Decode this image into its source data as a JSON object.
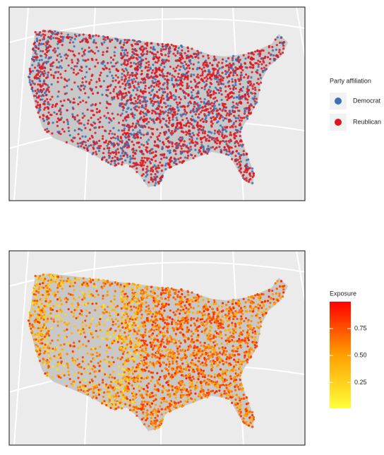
{
  "party_map": {
    "legend_title": "Party affiliation",
    "entries": [
      {
        "label": "Democrat",
        "color": "#3b70b5"
      },
      {
        "label": "Reublican",
        "color": "#e0141c"
      }
    ]
  },
  "exposure_map": {
    "legend_title": "Exposure",
    "lim": [
      0.01,
      1
    ],
    "ticks": [
      0.25,
      {
        "value": 0.5,
        "label": "0.50"
      },
      0.75
    ],
    "colors": [
      "#ffff3a",
      "#ffa000",
      "#ff0000"
    ]
  }
}
